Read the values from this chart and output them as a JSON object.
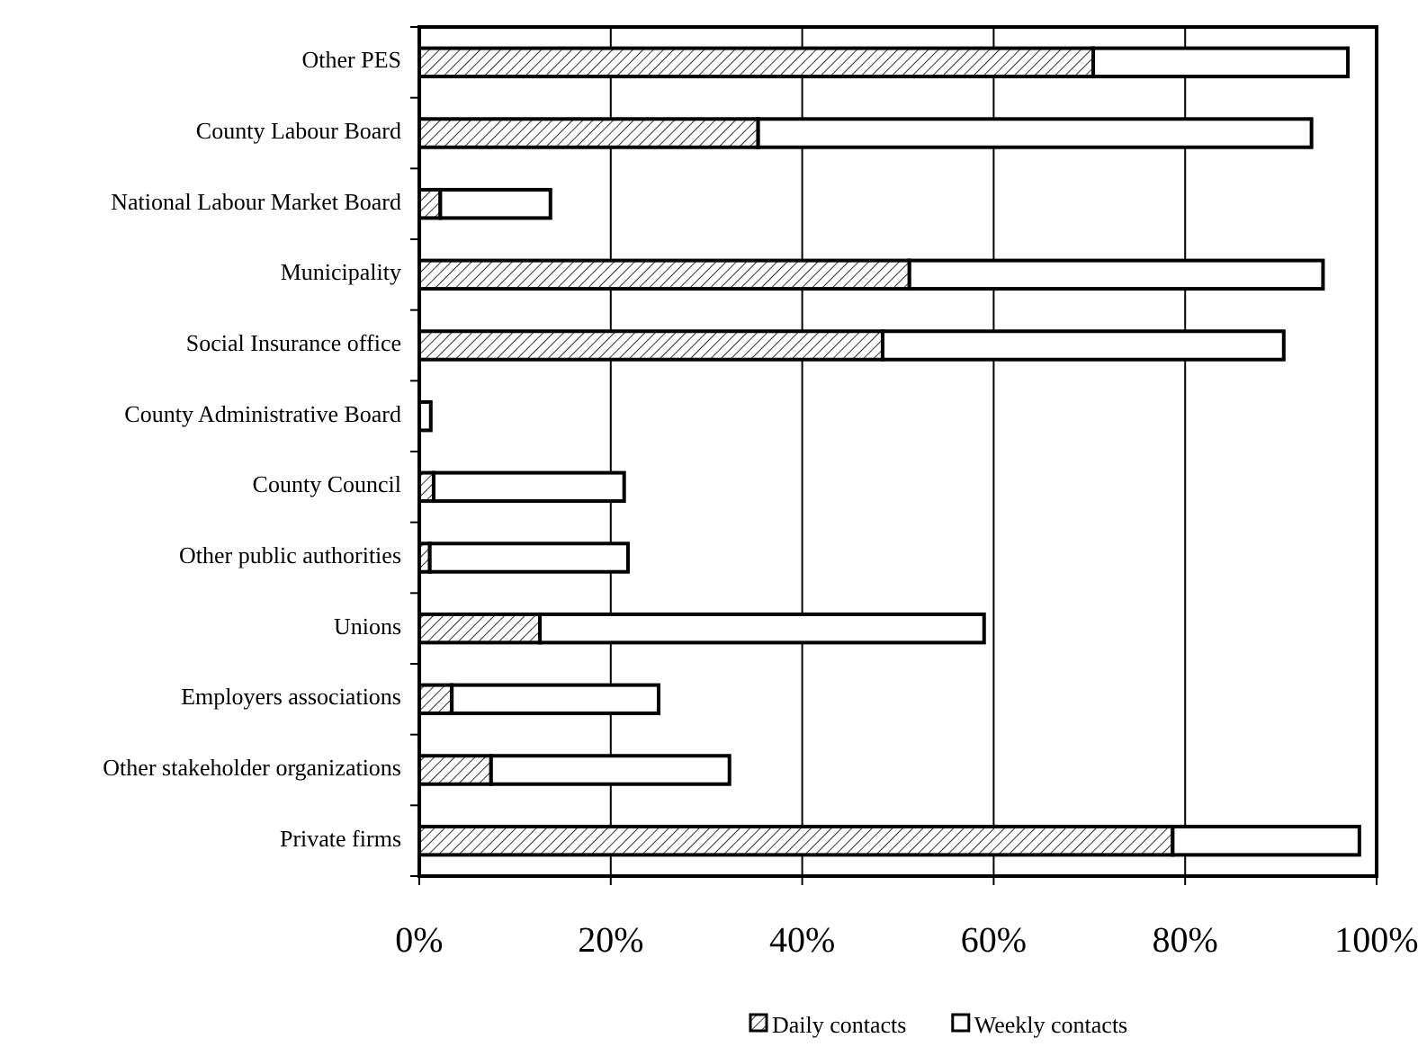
{
  "chart_data": {
    "type": "bar",
    "orientation": "horizontal",
    "stacked": true,
    "categories": [
      "Other PES",
      "County Labour Board",
      "National Labour Market Board",
      "Municipality",
      "Social Insurance office",
      "County Administrative Board",
      "County Council",
      "Other public authorities",
      "Unions",
      "Employers associations",
      "Other stakeholder organizations",
      "Private firms"
    ],
    "series": [
      {
        "name": "Daily contacts",
        "color": "#000000",
        "values": [
          70.4,
          35.4,
          2.2,
          51.2,
          48.4,
          0,
          1.5,
          1.1,
          12.6,
          3.4,
          7.5,
          78.7
        ]
      },
      {
        "name": "Weekly contacts",
        "color": "#ffffff",
        "values": [
          26.6,
          57.8,
          11.5,
          43.2,
          41.9,
          1.2,
          19.9,
          20.7,
          46.4,
          21.6,
          24.9,
          19.5
        ]
      }
    ],
    "xlim": [
      0,
      100
    ],
    "xticks": [
      {
        "value": 0,
        "label": "0%"
      },
      {
        "value": 20,
        "label": "20%"
      },
      {
        "value": 40,
        "label": "40%"
      },
      {
        "value": 60,
        "label": "60%"
      },
      {
        "value": 80,
        "label": "80%"
      },
      {
        "value": 100,
        "label": "100%"
      }
    ],
    "grid": "x",
    "legend": "bottom"
  }
}
